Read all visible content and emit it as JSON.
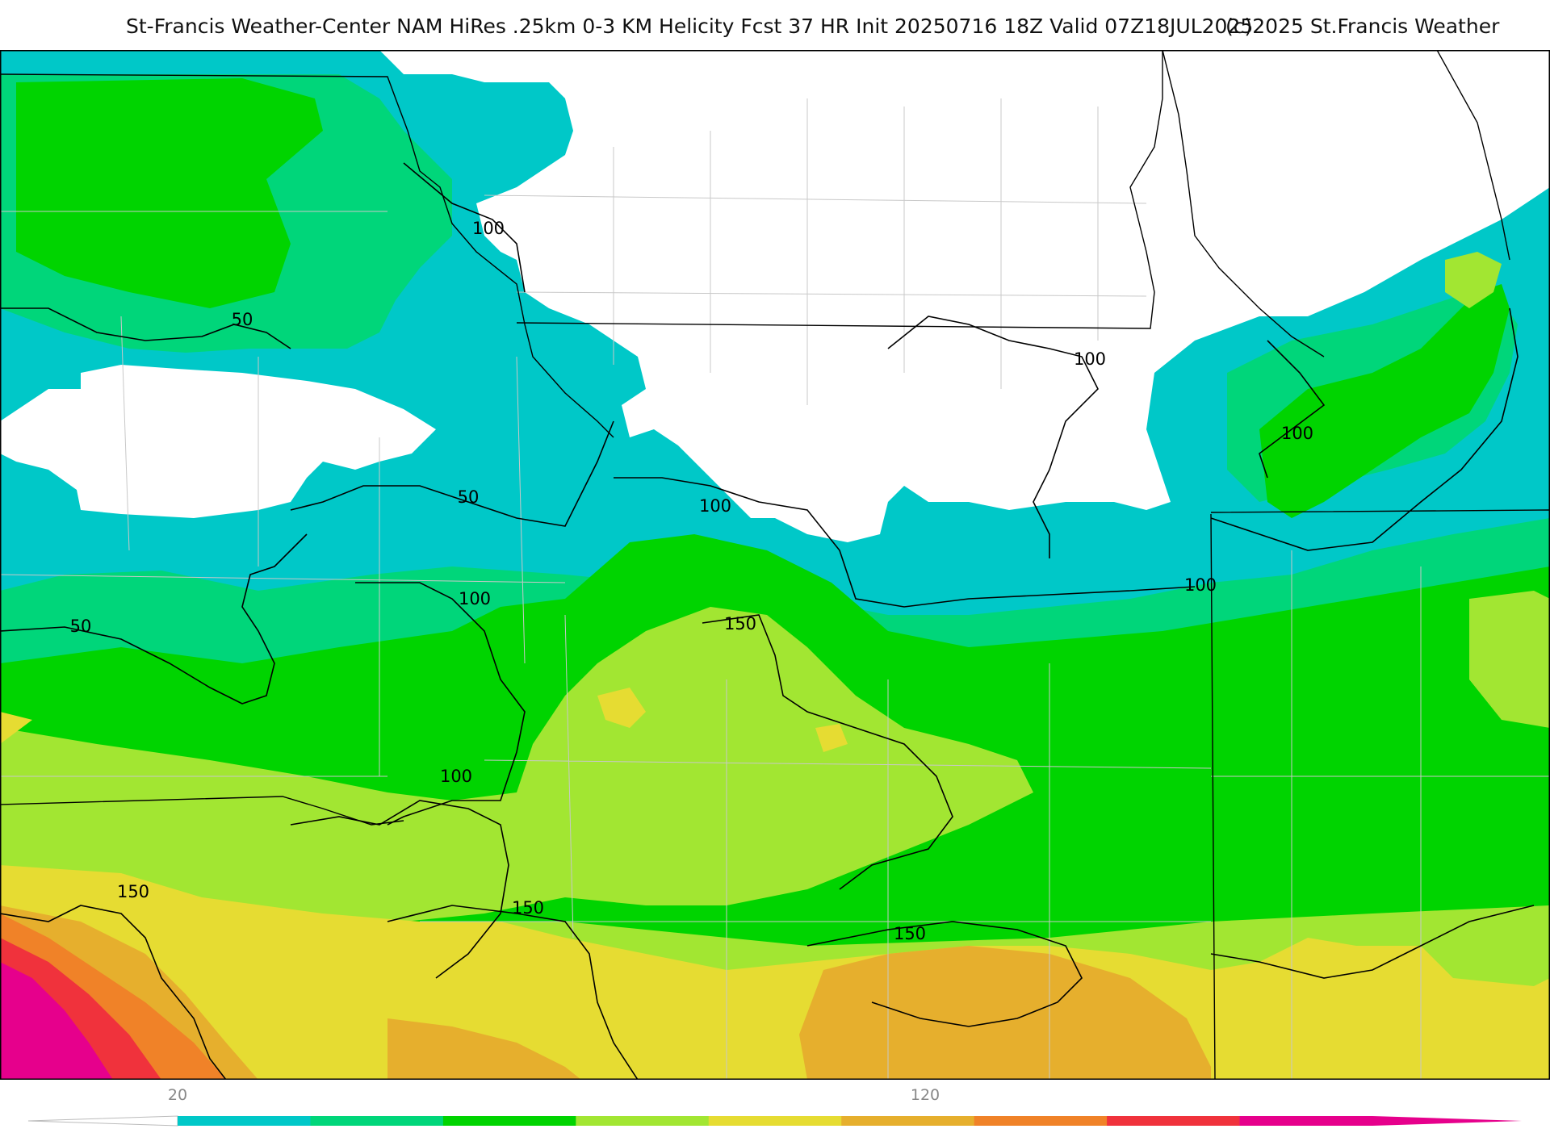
{
  "header": {
    "title": "St-Francis Weather-Center NAM HiRes .25km 0-3 KM Helicity Fcst 37 HR Init 20250716 18Z  Valid 07Z18JUL2025",
    "copyright": "(c)2025 St.Francis Weather"
  },
  "contour_labels": [
    "100",
    "50",
    "100",
    "50",
    "100",
    "100",
    "50",
    "100",
    "150",
    "100",
    "100",
    "150",
    "150",
    "150"
  ],
  "colorbar": {
    "tick_labels": [
      "20",
      "120"
    ],
    "colors": [
      "#00c8c8",
      "#00d67a",
      "#00d400",
      "#a2e632",
      "#e6dc32",
      "#e6af2d",
      "#f08228",
      "#f0323c",
      "#e6008c"
    ]
  }
}
